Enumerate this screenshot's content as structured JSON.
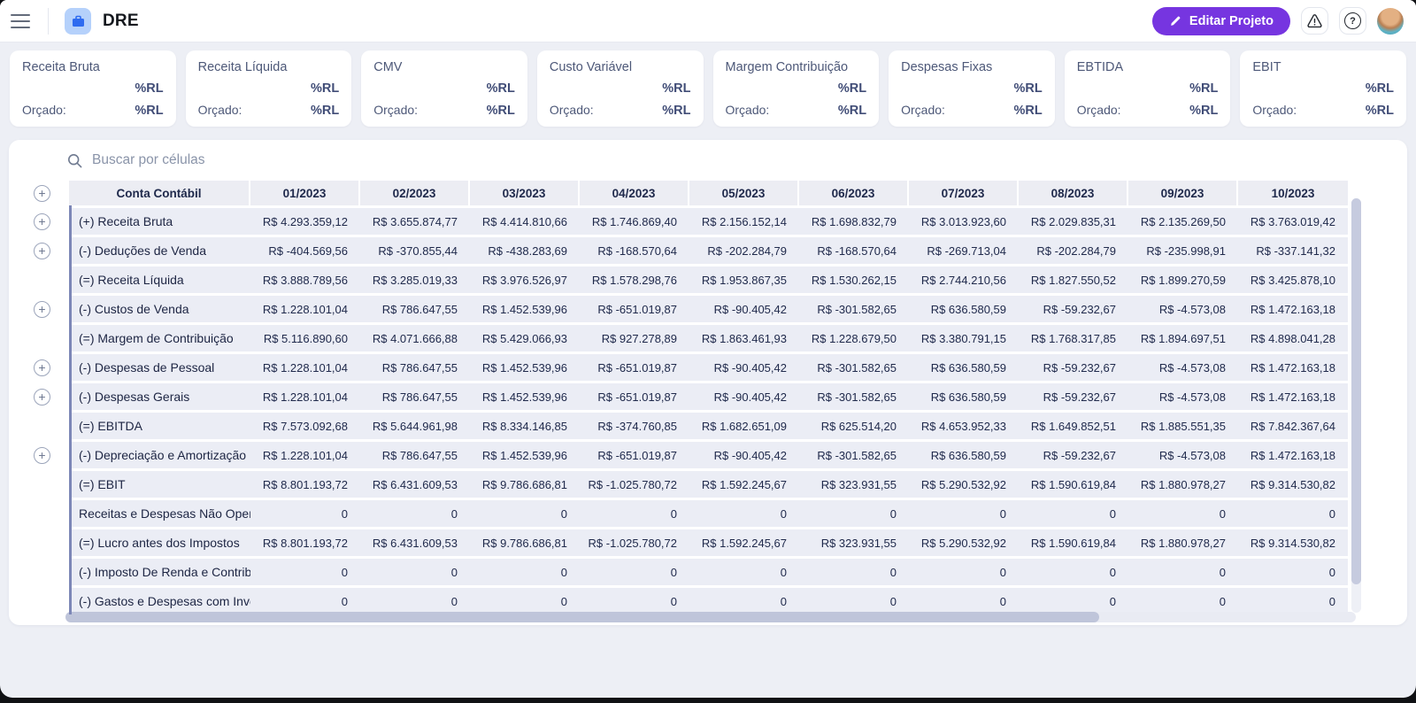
{
  "topbar": {
    "title": "DRE",
    "edit_button_label": "Editar Projeto"
  },
  "icons": {
    "plus": "+",
    "help": "?"
  },
  "colors": {
    "accent_purple": "#7635e0",
    "logo_blue": "#2e6bf0",
    "logo_bg": "#b5d1fb",
    "row_bg": "#ebedf5",
    "accent_line": "#7d87b7"
  },
  "kpi_cards": [
    {
      "title": "Receita Bruta",
      "value": "%RL",
      "budget_label": "Orçado:",
      "budget_value": "%RL"
    },
    {
      "title": "Receita Líquida",
      "value": "%RL",
      "budget_label": "Orçado:",
      "budget_value": "%RL"
    },
    {
      "title": "CMV",
      "value": "%RL",
      "budget_label": "Orçado:",
      "budget_value": "%RL"
    },
    {
      "title": "Custo Variável",
      "value": "%RL",
      "budget_label": "Orçado:",
      "budget_value": "%RL"
    },
    {
      "title": "Margem Contribuição",
      "value": "%RL",
      "budget_label": "Orçado:",
      "budget_value": "%RL"
    },
    {
      "title": "Despesas Fixas",
      "value": "%RL",
      "budget_label": "Orçado:",
      "budget_value": "%RL"
    },
    {
      "title": "EBTIDA",
      "value": "%RL",
      "budget_label": "Orçado:",
      "budget_value": "%RL"
    },
    {
      "title": "EBIT",
      "value": "%RL",
      "budget_label": "Orçado:",
      "budget_value": "%RL"
    }
  ],
  "table": {
    "search_placeholder": "Buscar por células",
    "columns": [
      "Conta Contábil",
      "01/2023",
      "02/2023",
      "03/2023",
      "04/2023",
      "05/2023",
      "06/2023",
      "07/2023",
      "08/2023",
      "09/2023",
      "10/2023"
    ],
    "rows": [
      {
        "label": "(+) Receita Bruta",
        "expandable": true,
        "values": [
          "R$ 4.293.359,12",
          "R$ 3.655.874,77",
          "R$ 4.414.810,66",
          "R$ 1.746.869,40",
          "R$ 2.156.152,14",
          "R$ 1.698.832,79",
          "R$ 3.013.923,60",
          "R$ 2.029.835,31",
          "R$ 2.135.269,50",
          "R$ 3.763.019,42"
        ]
      },
      {
        "label": "(-) Deduções de Venda",
        "expandable": true,
        "values": [
          "R$ -404.569,56",
          "R$ -370.855,44",
          "R$ -438.283,69",
          "R$ -168.570,64",
          "R$ -202.284,79",
          "R$ -168.570,64",
          "R$ -269.713,04",
          "R$ -202.284,79",
          "R$ -235.998,91",
          "R$ -337.141,32"
        ]
      },
      {
        "label": "(=) Receita Líquida",
        "expandable": false,
        "values": [
          "R$ 3.888.789,56",
          "R$ 3.285.019,33",
          "R$ 3.976.526,97",
          "R$ 1.578.298,76",
          "R$ 1.953.867,35",
          "R$ 1.530.262,15",
          "R$ 2.744.210,56",
          "R$ 1.827.550,52",
          "R$ 1.899.270,59",
          "R$ 3.425.878,10"
        ]
      },
      {
        "label": "(-) Custos de Venda",
        "expandable": true,
        "values": [
          "R$ 1.228.101,04",
          "R$ 786.647,55",
          "R$ 1.452.539,96",
          "R$ -651.019,87",
          "R$ -90.405,42",
          "R$ -301.582,65",
          "R$ 636.580,59",
          "R$ -59.232,67",
          "R$ -4.573,08",
          "R$ 1.472.163,18"
        ]
      },
      {
        "label": "(=) Margem de Contribuição",
        "expandable": false,
        "values": [
          "R$ 5.116.890,60",
          "R$ 4.071.666,88",
          "R$ 5.429.066,93",
          "R$ 927.278,89",
          "R$ 1.863.461,93",
          "R$ 1.228.679,50",
          "R$ 3.380.791,15",
          "R$ 1.768.317,85",
          "R$ 1.894.697,51",
          "R$ 4.898.041,28"
        ]
      },
      {
        "label": "(-) Despesas de Pessoal",
        "expandable": true,
        "values": [
          "R$ 1.228.101,04",
          "R$ 786.647,55",
          "R$ 1.452.539,96",
          "R$ -651.019,87",
          "R$ -90.405,42",
          "R$ -301.582,65",
          "R$ 636.580,59",
          "R$ -59.232,67",
          "R$ -4.573,08",
          "R$ 1.472.163,18"
        ]
      },
      {
        "label": "(-) Despesas Gerais",
        "expandable": true,
        "values": [
          "R$ 1.228.101,04",
          "R$ 786.647,55",
          "R$ 1.452.539,96",
          "R$ -651.019,87",
          "R$ -90.405,42",
          "R$ -301.582,65",
          "R$ 636.580,59",
          "R$ -59.232,67",
          "R$ -4.573,08",
          "R$ 1.472.163,18"
        ]
      },
      {
        "label": "(=) EBITDA",
        "expandable": false,
        "values": [
          "R$ 7.573.092,68",
          "R$ 5.644.961,98",
          "R$ 8.334.146,85",
          "R$ -374.760,85",
          "R$ 1.682.651,09",
          "R$ 625.514,20",
          "R$ 4.653.952,33",
          "R$ 1.649.852,51",
          "R$ 1.885.551,35",
          "R$ 7.842.367,64"
        ]
      },
      {
        "label": "(-) Depreciação e Amortização",
        "expandable": true,
        "values": [
          "R$ 1.228.101,04",
          "R$ 786.647,55",
          "R$ 1.452.539,96",
          "R$ -651.019,87",
          "R$ -90.405,42",
          "R$ -301.582,65",
          "R$ 636.580,59",
          "R$ -59.232,67",
          "R$ -4.573,08",
          "R$ 1.472.163,18"
        ]
      },
      {
        "label": "(=) EBIT",
        "expandable": false,
        "values": [
          "R$ 8.801.193,72",
          "R$ 6.431.609,53",
          "R$ 9.786.686,81",
          "R$ -1.025.780,72",
          "R$ 1.592.245,67",
          "R$ 323.931,55",
          "R$ 5.290.532,92",
          "R$ 1.590.619,84",
          "R$ 1.880.978,27",
          "R$ 9.314.530,82"
        ]
      },
      {
        "label": "Receitas e Despesas Não Operaci",
        "expandable": false,
        "values": [
          "0",
          "0",
          "0",
          "0",
          "0",
          "0",
          "0",
          "0",
          "0",
          "0"
        ]
      },
      {
        "label": "(=) Lucro antes dos Impostos",
        "expandable": false,
        "values": [
          "R$ 8.801.193,72",
          "R$ 6.431.609,53",
          "R$ 9.786.686,81",
          "R$ -1.025.780,72",
          "R$ 1.592.245,67",
          "R$ 323.931,55",
          "R$ 5.290.532,92",
          "R$ 1.590.619,84",
          "R$ 1.880.978,27",
          "R$ 9.314.530,82"
        ]
      },
      {
        "label": "(-) Imposto De Renda e Contribuiç",
        "expandable": false,
        "values": [
          "0",
          "0",
          "0",
          "0",
          "0",
          "0",
          "0",
          "0",
          "0",
          "0"
        ]
      },
      {
        "label": "(-) Gastos e Despesas com Invest",
        "expandable": false,
        "values": [
          "0",
          "0",
          "0",
          "0",
          "0",
          "0",
          "0",
          "0",
          "0",
          "0"
        ]
      }
    ]
  }
}
